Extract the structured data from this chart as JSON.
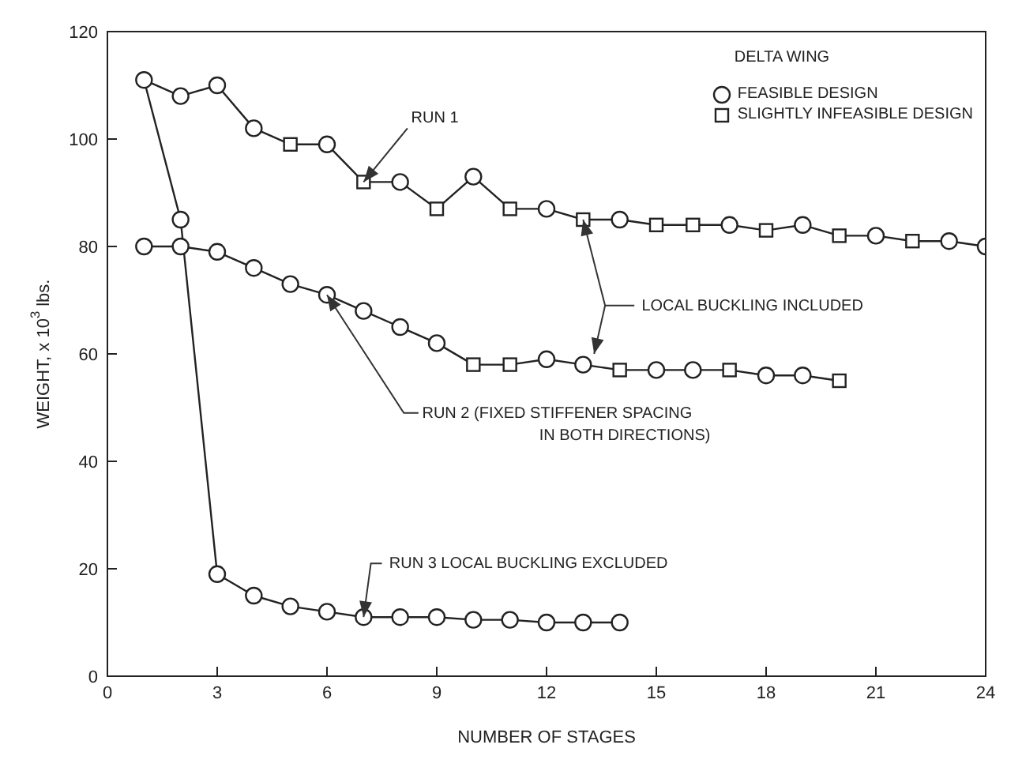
{
  "chart_data": {
    "type": "line",
    "xlabel": "NUMBER OF STAGES",
    "ylabel": "WEIGHT, x 10$^{3}$ lbs.",
    "legend_title": "DELTA WING",
    "legend": "top right",
    "grid": false,
    "xlim": [
      0,
      24
    ],
    "xticks": [
      0,
      3,
      6,
      9,
      12,
      15,
      18,
      21,
      24
    ],
    "ylim": [
      0,
      120
    ],
    "yticks": [
      0,
      20,
      40,
      60,
      80,
      100,
      120
    ],
    "line_style": "solid",
    "series": [
      {
        "marker": "none",
        "color": "#222222",
        "x": [
          1,
          2,
          3,
          4,
          5,
          6,
          7,
          8,
          9,
          10,
          11,
          12,
          13,
          14,
          15,
          16,
          17,
          18,
          19,
          20,
          21,
          22,
          23,
          24
        ],
        "values": [
          111,
          108,
          110,
          102,
          99,
          99,
          92,
          92,
          87,
          93,
          87,
          87,
          85,
          85,
          84,
          84,
          84,
          83,
          84,
          82,
          82,
          81,
          81,
          80
        ]
      },
      {
        "marker": "none",
        "color": "#222222",
        "x": [
          1,
          2,
          3,
          4,
          5,
          6,
          7,
          8,
          9,
          10,
          11,
          12,
          13,
          14,
          15,
          16,
          17,
          18,
          19,
          20
        ],
        "values": [
          80,
          80,
          79,
          76,
          73,
          71,
          68,
          65,
          62,
          58,
          58,
          59,
          58,
          57,
          57,
          57,
          57,
          56,
          56,
          55
        ]
      },
      {
        "marker": "none",
        "color": "#222222",
        "x": [
          1,
          2,
          3,
          4,
          5,
          6,
          7,
          8,
          9,
          10,
          11,
          12,
          13,
          14
        ],
        "values": [
          111,
          85,
          19,
          15,
          13,
          12,
          11,
          11,
          11,
          10.5,
          10.5,
          10,
          10,
          10
        ]
      },
      {
        "type": "scatter",
        "name": "FEASIBLE DESIGN",
        "marker": "circle",
        "color": "#222222",
        "x": [
          1,
          2,
          3,
          4,
          6,
          8,
          10,
          12,
          14,
          17,
          19,
          21,
          23,
          24,
          1,
          2,
          3,
          4,
          5,
          6,
          7,
          8,
          9,
          12,
          13,
          15,
          16,
          18,
          19,
          2,
          3,
          4,
          5,
          6,
          7,
          8,
          9,
          10,
          11,
          12,
          13,
          14
        ],
        "values": [
          111,
          108,
          110,
          102,
          99,
          92,
          93,
          87,
          85,
          84,
          84,
          82,
          81,
          80,
          80,
          80,
          79,
          76,
          73,
          71,
          68,
          65,
          62,
          59,
          58,
          57,
          57,
          56,
          56,
          85,
          19,
          15,
          13,
          12,
          11,
          11,
          11,
          10.5,
          10.5,
          10,
          10,
          10
        ]
      },
      {
        "type": "scatter",
        "name": "SLIGHTLY INFEASIBLE DESIGN",
        "marker": "square",
        "color": "#222222",
        "x": [
          5,
          7,
          9,
          11,
          13,
          15,
          16,
          18,
          20,
          22,
          10,
          11,
          14,
          17,
          20
        ],
        "values": [
          99,
          92,
          87,
          87,
          85,
          84,
          84,
          83,
          82,
          81,
          58,
          58,
          57,
          57,
          55
        ]
      }
    ],
    "annotations": [
      {
        "text": "RUN 1",
        "x": 7,
        "y": 92
      },
      {
        "text": "LOCAL BUCKLING INCLUDED",
        "x": 13,
        "y": 85
      },
      {
        "text": "RUN 2 (FIXED STIFFENER SPACING IN BOTH DIRECTIONS)",
        "x": 6,
        "y": 71
      },
      {
        "text": "RUN 3 LOCAL BUCKLING EXCLUDED",
        "x": 7,
        "y": 11
      }
    ]
  }
}
